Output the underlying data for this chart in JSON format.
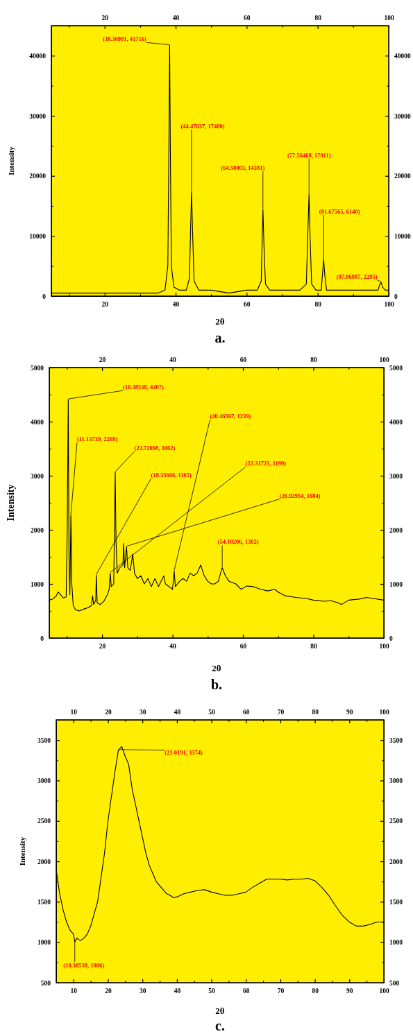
{
  "chart_data": [
    {
      "type": "line",
      "title": "a.",
      "xlabel": "2θ",
      "ylabel": "Intensity",
      "xlim": [
        5,
        100
      ],
      "ylim": [
        0,
        45000
      ],
      "x2lim": [
        5,
        100
      ],
      "y2lim": [
        0,
        45000
      ],
      "xticks": [
        {
          "value": 10,
          "label": null
        },
        20,
        {
          "value": 30,
          "label": null
        },
        40,
        {
          "value": 50,
          "label": null
        },
        60,
        {
          "value": 70,
          "label": null
        },
        80,
        {
          "value": 90,
          "label": null
        },
        100
      ],
      "x2ticks": [
        {
          "value": 10,
          "label": null
        },
        20,
        {
          "value": 30,
          "label": null
        },
        40,
        {
          "value": 50,
          "label": null
        },
        60,
        {
          "value": 70,
          "label": null
        },
        80,
        {
          "value": 90,
          "label": null
        },
        100
      ],
      "yticks": [
        0,
        {
          "value": 5000,
          "label": null
        },
        10000,
        {
          "value": 15000,
          "label": null
        },
        20000,
        {
          "value": 25000,
          "label": null
        },
        30000,
        {
          "value": 35000,
          "label": null
        },
        40000
      ],
      "y2ticks": [
        0,
        {
          "value": 5000,
          "label": null
        },
        10000,
        {
          "value": 15000,
          "label": null
        },
        20000,
        {
          "value": 25000,
          "label": null
        },
        30000,
        {
          "value": 35000,
          "label": null
        },
        40000
      ],
      "series": [
        {
          "color": "#000000",
          "x": [
            5,
            10,
            15,
            20,
            25,
            30,
            35,
            37,
            37.8,
            38.1,
            38.31,
            38.5,
            38.8,
            39.5,
            41,
            43,
            43.9,
            44.2,
            44.48,
            44.8,
            45.2,
            46.5,
            50,
            55,
            60,
            63,
            64.1,
            64.4,
            64.58,
            64.9,
            65.3,
            66.5,
            70,
            75,
            76.8,
            77.2,
            77.56,
            77.9,
            78.3,
            79.5,
            81,
            81.4,
            81.68,
            82,
            82.5,
            84,
            90,
            95,
            97,
            97.5,
            97.87,
            98.3,
            99,
            100
          ],
          "values": [
            500,
            500,
            500,
            500,
            500,
            500,
            500,
            1000,
            5000,
            25000,
            41716,
            25000,
            5000,
            1500,
            1000,
            1000,
            3000,
            11000,
            17460,
            10000,
            2500,
            1000,
            1000,
            500,
            1000,
            1000,
            2500,
            10000,
            14381,
            8000,
            2000,
            1000,
            1000,
            1000,
            2000,
            10000,
            17011,
            9000,
            2000,
            1000,
            1000,
            4000,
            6140,
            3500,
            1000,
            1000,
            1000,
            1000,
            1000,
            2000,
            2295,
            1500,
            1000,
            1000
          ]
        }
      ],
      "annotations": [
        {
          "text": "(38.30991, 41716)",
          "x": 38.30991,
          "y": 41716
        },
        {
          "text": "(44.47637, 17460)",
          "x": 44.47637,
          "y": 17460
        },
        {
          "text": "(64.58003, 14381)",
          "x": 64.58003,
          "y": 14381
        },
        {
          "text": "(77.56468, 17011)",
          "x": 77.56468,
          "y": 17011
        },
        {
          "text": "(81.67565, 6140)",
          "x": 81.67565,
          "y": 6140
        },
        {
          "text": "(97.86887, 2295)",
          "x": 97.86887,
          "y": 2295
        }
      ]
    },
    {
      "type": "line",
      "title": "b.",
      "xlabel": "2θ",
      "ylabel": "Intensity",
      "xlim": [
        5,
        100
      ],
      "ylim": [
        0,
        5000
      ],
      "x2lim": [
        5,
        100
      ],
      "y2lim": [
        0,
        5000
      ],
      "xticks": [
        {
          "value": 10,
          "label": null
        },
        20,
        {
          "value": 30,
          "label": null
        },
        40,
        {
          "value": 50,
          "label": null
        },
        60,
        {
          "value": 70,
          "label": null
        },
        80,
        {
          "value": 90,
          "label": null
        },
        100
      ],
      "x2ticks": [
        {
          "value": 10,
          "label": null
        },
        20,
        {
          "value": 30,
          "label": null
        },
        40,
        {
          "value": 50,
          "label": null
        },
        60,
        {
          "value": 70,
          "label": null
        },
        80,
        {
          "value": 90,
          "label": null
        },
        100
      ],
      "yticks": [
        0,
        {
          "value": 500,
          "label": null
        },
        1000,
        {
          "value": 1500,
          "label": null
        },
        2000,
        {
          "value": 2500,
          "label": null
        },
        3000,
        {
          "value": 3500,
          "label": null
        },
        4000,
        {
          "value": 4500,
          "label": null
        },
        5000
      ],
      "y2ticks": [
        0,
        {
          "value": 500,
          "label": null
        },
        1000,
        {
          "value": 1500,
          "label": null
        },
        2000,
        {
          "value": 2500,
          "label": null
        },
        3000,
        {
          "value": 3500,
          "label": null
        },
        4000,
        {
          "value": 4500,
          "label": null
        },
        5000
      ],
      "series": [
        {
          "color": "#000000",
          "x": [
            5,
            6,
            7,
            7.5,
            8,
            9,
            9.8,
            10.1,
            10.38538,
            10.6,
            10.85,
            11.13739,
            11.4,
            11.8,
            12.5,
            13.5,
            15,
            16,
            17,
            17.3,
            17.6,
            18.2,
            18.35666,
            18.6,
            19.5,
            20.5,
            21.5,
            22,
            22.31723,
            22.6,
            23.3,
            23.5,
            23.72098,
            23.95,
            24.3,
            25,
            25.9,
            26.1,
            26.4,
            26.92954,
            27.3,
            28,
            28.7,
            29.2,
            30,
            31,
            32,
            33,
            34,
            35,
            36,
            37.5,
            38,
            39,
            40,
            40.46567,
            40.8,
            42,
            43,
            44,
            45,
            46,
            47,
            48,
            49,
            50,
            51,
            52,
            53,
            54.10206,
            55,
            56,
            58,
            59.5,
            61,
            63,
            65,
            67,
            69,
            70,
            72,
            75,
            78,
            80,
            83,
            85,
            87,
            88,
            90,
            93,
            95,
            97,
            100
          ],
          "values": [
            700,
            720,
            780,
            850,
            820,
            740,
            760,
            2000,
            4407,
            1500,
            800,
            2269,
            1000,
            600,
            520,
            500,
            540,
            560,
            600,
            780,
            620,
            700,
            1165,
            650,
            620,
            680,
            800,
            900,
            1199,
            950,
            1000,
            2000,
            3062,
            1800,
            1200,
            1300,
            1350,
            1750,
            1300,
            1684,
            1300,
            1250,
            1550,
            1200,
            1100,
            1150,
            1000,
            1100,
            950,
            1100,
            950,
            1150,
            1000,
            950,
            900,
            1239,
            950,
            1050,
            1100,
            1050,
            1200,
            1150,
            1200,
            1350,
            1150,
            1050,
            1000,
            1000,
            1050,
            1302,
            1150,
            1050,
            1000,
            900,
            960,
            950,
            900,
            870,
            900,
            850,
            780,
            750,
            730,
            700,
            680,
            690,
            650,
            620,
            700,
            720,
            750,
            730,
            700
          ]
        }
      ],
      "annotations": [
        {
          "text": "(10.38538, 4407)",
          "x": 10.38538,
          "y": 4407
        },
        {
          "text": "(11.13739, 2269)",
          "x": 11.13739,
          "y": 2269
        },
        {
          "text": "(23.72098, 3062)",
          "x": 23.72098,
          "y": 3062
        },
        {
          "text": "(18.35666, 1165)",
          "x": 18.35666,
          "y": 1165
        },
        {
          "text": "(40.46567, 1239)",
          "x": 40.46567,
          "y": 1239
        },
        {
          "text": "(22.31723, 1199)",
          "x": 22.31723,
          "y": 1199
        },
        {
          "text": "(26.92954, 1684)",
          "x": 26.92954,
          "y": 1684
        },
        {
          "text": "(54.10206, 1302)",
          "x": 54.10206,
          "y": 1302
        }
      ]
    },
    {
      "type": "line",
      "title": "c.",
      "xlabel": "2θ",
      "ylabel": "Intensity",
      "xlim": [
        5,
        100
      ],
      "ylim": [
        500,
        3750
      ],
      "x2lim": [
        5,
        100
      ],
      "y2lim": [
        500,
        3750
      ],
      "xticks": [
        10,
        {
          "value": 15,
          "label": null
        },
        20,
        {
          "value": 25,
          "label": null
        },
        30,
        {
          "value": 35,
          "label": null
        },
        40,
        {
          "value": 45,
          "label": null
        },
        50,
        {
          "value": 55,
          "label": null
        },
        60,
        {
          "value": 65,
          "label": null
        },
        70,
        {
          "value": 75,
          "label": null
        },
        80,
        {
          "value": 85,
          "label": null
        },
        90,
        {
          "value": 95,
          "label": null
        },
        100
      ],
      "x2ticks": [
        10,
        {
          "value": 15,
          "label": null
        },
        20,
        {
          "value": 25,
          "label": null
        },
        30,
        {
          "value": 35,
          "label": null
        },
        40,
        {
          "value": 45,
          "label": null
        },
        50,
        {
          "value": 55,
          "label": null
        },
        60,
        {
          "value": 65,
          "label": null
        },
        70,
        {
          "value": 75,
          "label": null
        },
        80,
        {
          "value": 85,
          "label": null
        },
        90,
        {
          "value": 95,
          "label": null
        },
        100
      ],
      "yticks": [
        500,
        {
          "value": 750,
          "label": null
        },
        1000,
        {
          "value": 1250,
          "label": null
        },
        1500,
        {
          "value": 1750,
          "label": null
        },
        2000,
        {
          "value": 2250,
          "label": null
        },
        2500,
        {
          "value": 2750,
          "label": null
        },
        3000,
        {
          "value": 3250,
          "label": null
        },
        3500
      ],
      "y2ticks": [
        500,
        {
          "value": 750,
          "label": null
        },
        1000,
        {
          "value": 1250,
          "label": null
        },
        1500,
        {
          "value": 1750,
          "label": null
        },
        2000,
        {
          "value": 2250,
          "label": null
        },
        2500,
        {
          "value": 2750,
          "label": null
        },
        3000,
        {
          "value": 3250,
          "label": null
        },
        3500
      ],
      "series": [
        {
          "color": "#000000",
          "x": [
            5,
            6,
            7,
            8,
            9,
            10,
            10.38538,
            11,
            12,
            13,
            14,
            15,
            16,
            17,
            18,
            19,
            20,
            21,
            22,
            23.0191,
            24,
            25,
            26,
            27,
            28,
            29,
            30,
            31,
            32,
            33,
            34,
            35,
            36,
            37,
            38,
            39,
            40,
            42,
            44,
            46,
            48,
            50,
            52,
            54,
            56,
            58,
            60,
            62,
            64,
            66,
            68,
            70,
            72,
            74,
            76,
            78,
            80,
            82,
            84,
            86,
            88,
            90,
            92,
            94,
            96,
            98,
            100
          ],
          "values": [
            1900,
            1600,
            1400,
            1250,
            1150,
            1100,
            1006,
            1050,
            1020,
            1050,
            1100,
            1200,
            1350,
            1500,
            1800,
            2100,
            2500,
            2800,
            3100,
            3374,
            3420,
            3300,
            3200,
            2900,
            2700,
            2500,
            2300,
            2100,
            1950,
            1850,
            1750,
            1700,
            1650,
            1600,
            1580,
            1550,
            1560,
            1600,
            1620,
            1640,
            1650,
            1620,
            1600,
            1580,
            1580,
            1600,
            1620,
            1680,
            1730,
            1780,
            1780,
            1780,
            1770,
            1780,
            1780,
            1790,
            1760,
            1680,
            1580,
            1450,
            1330,
            1250,
            1200,
            1200,
            1220,
            1250,
            1250
          ]
        }
      ],
      "annotations": [
        {
          "text": "(23.0191, 3374)",
          "x": 23.0191,
          "y": 3374
        },
        {
          "text": "(10.38538, 1006)",
          "x": 10.38538,
          "y": 1006
        }
      ]
    }
  ]
}
